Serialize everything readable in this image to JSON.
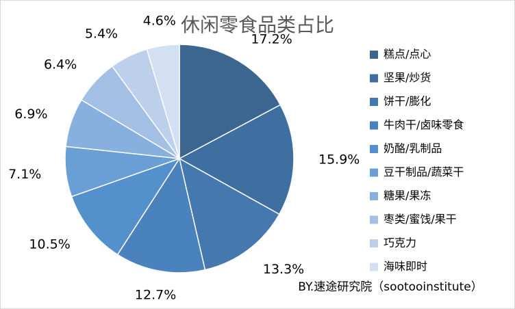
{
  "chart_data": {
    "type": "pie",
    "title": "休闲零食品类占比",
    "categories": [
      "糕点/点心",
      "坚果/炒货",
      "饼干/膨化",
      "牛肉干/卤味零食",
      "奶酪/乳制品",
      "豆干制品/蔬菜干",
      "糖果/果冻",
      "枣类/蜜饯/果干",
      "巧克力",
      "海味即时"
    ],
    "values": [
      17.2,
      15.9,
      13.3,
      12.7,
      10.5,
      7.1,
      6.9,
      6.4,
      5.4,
      4.6
    ],
    "value_labels": [
      "17.2%",
      "15.9%",
      "13.3%",
      "12.7%",
      "10.5%",
      "7.1%",
      "6.9%",
      "6.4%",
      "5.4%",
      "4.6%"
    ],
    "colors": [
      "#3c6690",
      "#3f6fa0",
      "#4478ae",
      "#4a82bd",
      "#5490cc",
      "#6a9fd6",
      "#88b0de",
      "#a3c0e4",
      "#bcd0ec",
      "#d3e0f2"
    ],
    "legend": "right",
    "source": "BY.速途研究院（sootooinstitute）"
  }
}
